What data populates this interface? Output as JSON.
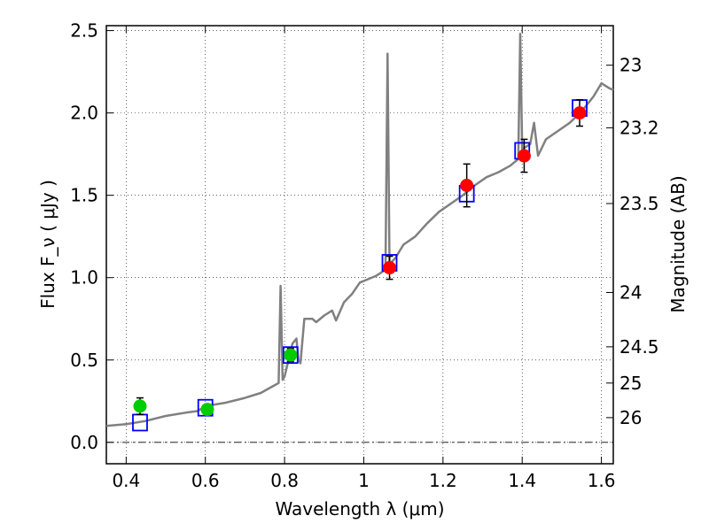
{
  "chart_data": {
    "type": "scatter",
    "xlabel": "Wavelength  λ (μm)",
    "ylabel": "Flux  F_ν  ( μJy )",
    "y2label": "Magnitude (AB)",
    "xlim": [
      0.35,
      1.63
    ],
    "ylim": [
      -0.13,
      2.53
    ],
    "x_ticks": [
      0.4,
      0.6,
      0.8,
      1.0,
      1.2,
      1.4,
      1.6
    ],
    "x_tick_labels": [
      "0.4",
      "0.6",
      "0.8",
      "1",
      "1.2",
      "1.4",
      "1.6"
    ],
    "y_ticks": [
      0.0,
      0.5,
      1.0,
      1.5,
      2.0,
      2.5
    ],
    "y_tick_labels": [
      "0.0",
      "0.5",
      "1.0",
      "1.5",
      "2.0",
      "2.5"
    ],
    "y2_ticks": [
      {
        "label": "23",
        "flux": 2.29
      },
      {
        "label": "23.2",
        "flux": 1.91
      },
      {
        "label": "23.5",
        "flux": 1.45
      },
      {
        "label": "24",
        "flux": 0.91
      },
      {
        "label": "24.5",
        "flux": 0.58
      },
      {
        "label": "25",
        "flux": 0.36
      },
      {
        "label": "26",
        "flux": 0.15
      }
    ],
    "grid": true,
    "zero_line": true,
    "series": [
      {
        "kind": "line",
        "color": "#808080",
        "points": [
          [
            0.35,
            0.1
          ],
          [
            0.4,
            0.11
          ],
          [
            0.45,
            0.13
          ],
          [
            0.5,
            0.16
          ],
          [
            0.55,
            0.18
          ],
          [
            0.58,
            0.19
          ],
          [
            0.6,
            0.22
          ],
          [
            0.65,
            0.24
          ],
          [
            0.7,
            0.27
          ],
          [
            0.74,
            0.3
          ],
          [
            0.77,
            0.34
          ],
          [
            0.785,
            0.36
          ],
          [
            0.79,
            0.95
          ],
          [
            0.795,
            0.38
          ],
          [
            0.8,
            0.4
          ],
          [
            0.82,
            0.6
          ],
          [
            0.83,
            0.63
          ],
          [
            0.835,
            0.5
          ],
          [
            0.84,
            0.48
          ],
          [
            0.85,
            0.75
          ],
          [
            0.87,
            0.75
          ],
          [
            0.88,
            0.73
          ],
          [
            0.9,
            0.77
          ],
          [
            0.92,
            0.8
          ],
          [
            0.93,
            0.74
          ],
          [
            0.95,
            0.85
          ],
          [
            0.97,
            0.9
          ],
          [
            0.99,
            0.97
          ],
          [
            1.01,
            0.99
          ],
          [
            1.03,
            1.01
          ],
          [
            1.05,
            1.04
          ],
          [
            1.055,
            1.07
          ],
          [
            1.06,
            2.36
          ],
          [
            1.065,
            1.08
          ],
          [
            1.08,
            1.12
          ],
          [
            1.1,
            1.2
          ],
          [
            1.13,
            1.25
          ],
          [
            1.16,
            1.33
          ],
          [
            1.19,
            1.4
          ],
          [
            1.22,
            1.45
          ],
          [
            1.25,
            1.5
          ],
          [
            1.28,
            1.56
          ],
          [
            1.31,
            1.61
          ],
          [
            1.34,
            1.64
          ],
          [
            1.37,
            1.68
          ],
          [
            1.39,
            1.72
          ],
          [
            1.395,
            2.48
          ],
          [
            1.4,
            1.78
          ],
          [
            1.42,
            1.81
          ],
          [
            1.43,
            1.94
          ],
          [
            1.44,
            1.74
          ],
          [
            1.46,
            1.84
          ],
          [
            1.49,
            1.89
          ],
          [
            1.52,
            1.94
          ],
          [
            1.55,
            2.01
          ],
          [
            1.58,
            2.1
          ],
          [
            1.6,
            2.18
          ],
          [
            1.62,
            2.15
          ],
          [
            1.63,
            2.14
          ]
        ]
      },
      {
        "kind": "squares",
        "color": "#0000ff",
        "points": [
          [
            0.435,
            0.12
          ],
          [
            0.6,
            0.21
          ],
          [
            0.815,
            0.53
          ],
          [
            1.065,
            1.09
          ],
          [
            1.26,
            1.51
          ],
          [
            1.4,
            1.77
          ],
          [
            1.545,
            2.03
          ]
        ]
      },
      {
        "kind": "points",
        "color": "#00cc00",
        "points": [
          {
            "x": 0.435,
            "y": 0.22,
            "err": 0.05
          },
          {
            "x": 0.605,
            "y": 0.2,
            "err": 0.03
          },
          {
            "x": 0.815,
            "y": 0.53,
            "err": 0.04
          }
        ]
      },
      {
        "kind": "points",
        "color": "#ff0000",
        "points": [
          {
            "x": 1.065,
            "y": 1.06,
            "err": 0.07
          },
          {
            "x": 1.26,
            "y": 1.56,
            "err": 0.13
          },
          {
            "x": 1.405,
            "y": 1.74,
            "err": 0.1
          },
          {
            "x": 1.545,
            "y": 2.0,
            "err": 0.08
          }
        ]
      }
    ]
  }
}
